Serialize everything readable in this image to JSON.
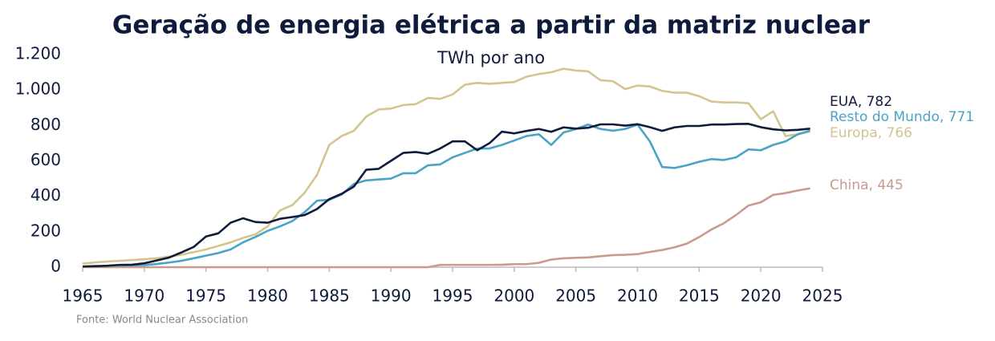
{
  "chart_data": {
    "type": "line",
    "title": "Geração de energia elétrica a partir da matriz nuclear",
    "subtitle": "TWh por ano",
    "source": "Fonte: World Nuclear Association",
    "x": [
      1965,
      1966,
      1967,
      1968,
      1969,
      1970,
      1971,
      1972,
      1973,
      1974,
      1975,
      1976,
      1977,
      1978,
      1979,
      1980,
      1981,
      1982,
      1983,
      1984,
      1985,
      1986,
      1987,
      1988,
      1989,
      1990,
      1991,
      1992,
      1993,
      1994,
      1995,
      1996,
      1997,
      1998,
      1999,
      2000,
      2001,
      2002,
      2003,
      2004,
      2005,
      2006,
      2007,
      2008,
      2009,
      2010,
      2011,
      2012,
      2013,
      2014,
      2015,
      2016,
      2017,
      2018,
      2019,
      2020,
      2021,
      2022,
      2023,
      2024
    ],
    "series": [
      {
        "name": "Europa, 766",
        "color": "#d4c48e",
        "values": [
          20,
          27,
          32,
          36,
          40,
          45,
          50,
          60,
          70,
          85,
          100,
          120,
          140,
          165,
          185,
          230,
          320,
          350,
          420,
          520,
          690,
          740,
          770,
          850,
          890,
          895,
          915,
          920,
          955,
          950,
          975,
          1030,
          1040,
          1035,
          1040,
          1045,
          1075,
          1090,
          1100,
          1120,
          1110,
          1105,
          1055,
          1050,
          1005,
          1025,
          1020,
          995,
          985,
          985,
          965,
          935,
          930,
          930,
          925,
          835,
          880,
          740,
          750,
          766
        ]
      },
      {
        "name": "Resto do Mundo, 771",
        "color": "#4ba3c7",
        "values": [
          2,
          4,
          6,
          8,
          10,
          12,
          18,
          26,
          36,
          50,
          65,
          80,
          100,
          140,
          170,
          205,
          230,
          260,
          310,
          375,
          380,
          410,
          470,
          490,
          495,
          500,
          530,
          530,
          575,
          580,
          620,
          645,
          670,
          670,
          690,
          715,
          740,
          750,
          690,
          760,
          780,
          805,
          780,
          770,
          780,
          805,
          710,
          565,
          560,
          575,
          595,
          610,
          605,
          620,
          665,
          660,
          690,
          710,
          750,
          771
        ]
      },
      {
        "name": "China, 445",
        "color": "#c99a8e",
        "values": [
          0,
          0,
          0,
          0,
          0,
          0,
          0,
          0,
          0,
          0,
          0,
          0,
          0,
          0,
          0,
          0,
          0,
          0,
          0,
          0,
          0,
          0,
          0,
          0,
          0,
          0,
          0,
          0,
          0,
          13,
          13,
          13,
          13,
          13,
          14,
          17,
          17,
          25,
          43,
          50,
          53,
          55,
          62,
          68,
          70,
          74,
          86,
          97,
          112,
          133,
          170,
          213,
          248,
          295,
          348,
          366,
          408,
          418,
          433,
          445
        ]
      },
      {
        "name": "EUA, 782",
        "color": "#0f1b3d",
        "values": [
          4,
          6,
          8,
          13,
          14,
          22,
          38,
          54,
          83,
          114,
          173,
          191,
          251,
          276,
          255,
          251,
          273,
          283,
          294,
          328,
          384,
          414,
          455,
          550,
          555,
          600,
          645,
          650,
          640,
          670,
          710,
          710,
          660,
          700,
          765,
          755,
          769,
          780,
          764,
          789,
          782,
          787,
          806,
          806,
          799,
          807,
          790,
          769,
          789,
          797,
          797,
          805,
          805,
          808,
          809,
          790,
          778,
          772,
          775,
          782
        ]
      }
    ],
    "xlim": [
      1965,
      2025
    ],
    "xticks": [
      1965,
      1970,
      1975,
      1980,
      1985,
      1990,
      1995,
      2000,
      2005,
      2010,
      2015,
      2020,
      2025
    ],
    "ylim": [
      0,
      1200
    ],
    "yticks": [
      0,
      200,
      400,
      600,
      800,
      {
        "value": 1000,
        "label": "1.000"
      },
      {
        "value": 1200,
        "label": "1.200"
      }
    ]
  }
}
